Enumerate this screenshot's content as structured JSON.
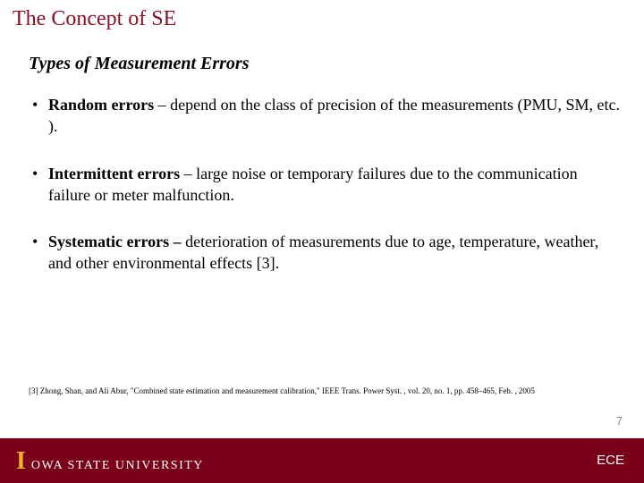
{
  "colors": {
    "title": "#8b1024",
    "footer_bg": "#7a0019",
    "logo_accent": "#f0b323",
    "logo_text": "#ffffff",
    "page_num": "#888888",
    "body_text": "#000000",
    "background": "#ffffff"
  },
  "typography": {
    "title_fontsize": 24,
    "subtitle_fontsize": 20,
    "body_fontsize": 18,
    "reference_fontsize": 9,
    "pagenum_fontsize": 13,
    "footer_right_fontsize": 15
  },
  "title": "The Concept of SE",
  "subtitle": "Types of Measurement Errors",
  "bullets": [
    {
      "term": "Random errors",
      "sep": " – ",
      "text": "depend on the class of precision of the measurements (PMU, SM, etc. )."
    },
    {
      "term": "Intermittent errors",
      "sep": " – ",
      "text": "large noise or temporary failures due to the communication failure or meter malfunction."
    },
    {
      "term": "Systematic errors –",
      "sep": " ",
      "text": "deterioration of measurements due to age, temperature, weather, and other environmental effects [3]."
    }
  ],
  "reference": "[3] Zhong, Shan, and Ali Abur, \"Combined state estimation and measurement calibration,\" IEEE Trans. Power Syst. , vol. 20, no. 1, pp. 458–465, Feb. , 2005",
  "page_number": "7",
  "footer": {
    "logo_i": "I",
    "logo_text": "OWA STATE UNIVERSITY",
    "right_text": "ECE"
  }
}
